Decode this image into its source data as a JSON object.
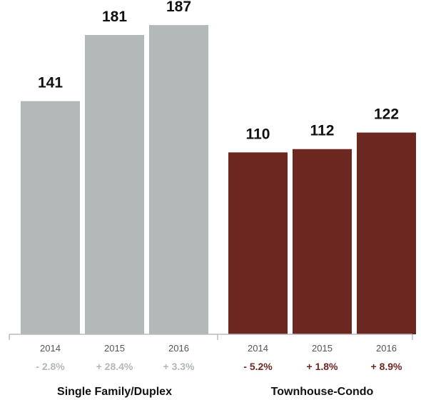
{
  "chart_data": {
    "type": "bar",
    "ylim": [
      0,
      200
    ],
    "groups": [
      {
        "name": "Single Family/Duplex",
        "color": "#b3b8b8",
        "change_color": "#b3b8b8",
        "categories": [
          "2014",
          "2015",
          "2016"
        ],
        "values": [
          141,
          181,
          187
        ],
        "changes": [
          "- 2.8%",
          "+ 28.4%",
          "+ 3.3%"
        ]
      },
      {
        "name": "Townhouse-Condo",
        "color": "#6b2720",
        "change_color": "#6b2720",
        "categories": [
          "2014",
          "2015",
          "2016"
        ],
        "values": [
          110,
          112,
          122
        ],
        "changes": [
          "- 5.2%",
          "+ 1.8%",
          "+ 8.9%"
        ]
      }
    ]
  }
}
